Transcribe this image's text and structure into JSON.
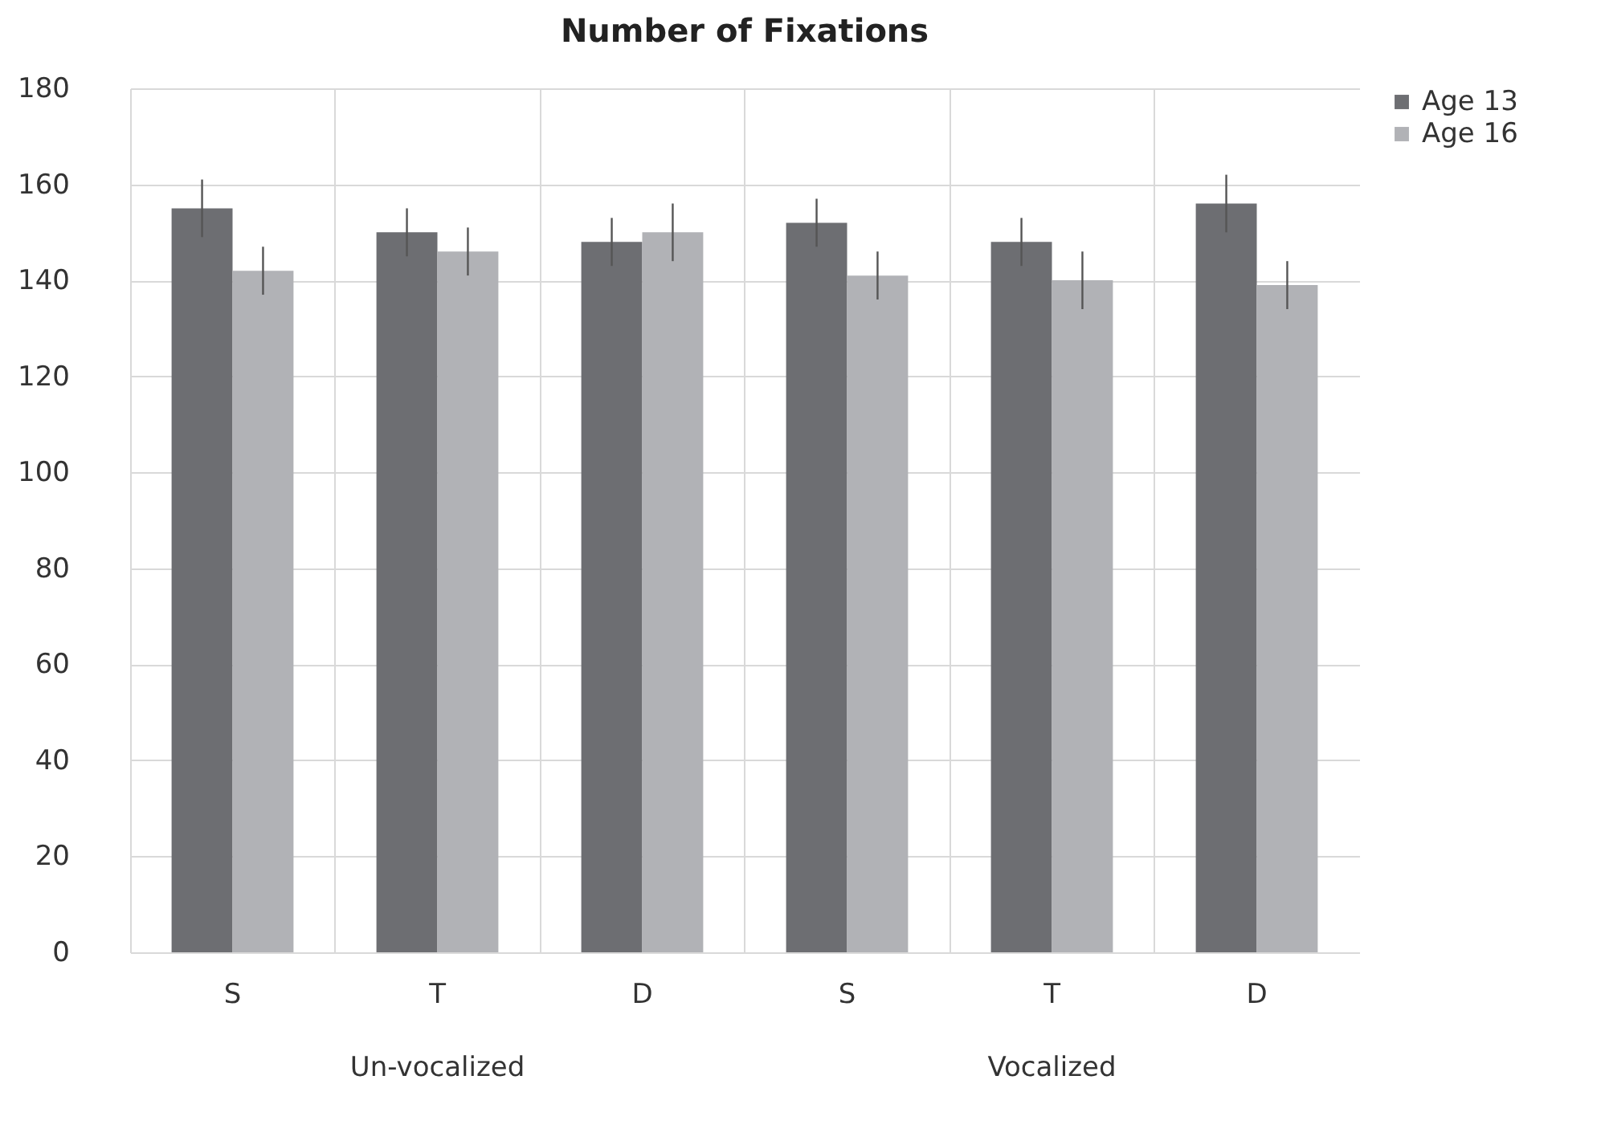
{
  "chart_data": {
    "type": "bar",
    "title": "Number of Fixations",
    "categories": [
      "S",
      "T",
      "D",
      "S",
      "T",
      "D"
    ],
    "annotations": [
      "Un-vocalized",
      "Vocalized"
    ],
    "series": [
      {
        "name": "Age 13",
        "color": "#6d6e72",
        "values": [
          155,
          150,
          148,
          152,
          148,
          156
        ],
        "errors": [
          6,
          5,
          5,
          5,
          5,
          6
        ]
      },
      {
        "name": "Age 16",
        "color": "#b1b2b6",
        "values": [
          142,
          146,
          150,
          141,
          140,
          139
        ],
        "errors": [
          5,
          5,
          6,
          5,
          6,
          5
        ]
      }
    ],
    "ylim": [
      0,
      180
    ],
    "yticks": [
      0,
      20,
      40,
      60,
      80,
      100,
      120,
      140,
      160,
      180
    ],
    "grid": "y",
    "legend": "right"
  }
}
